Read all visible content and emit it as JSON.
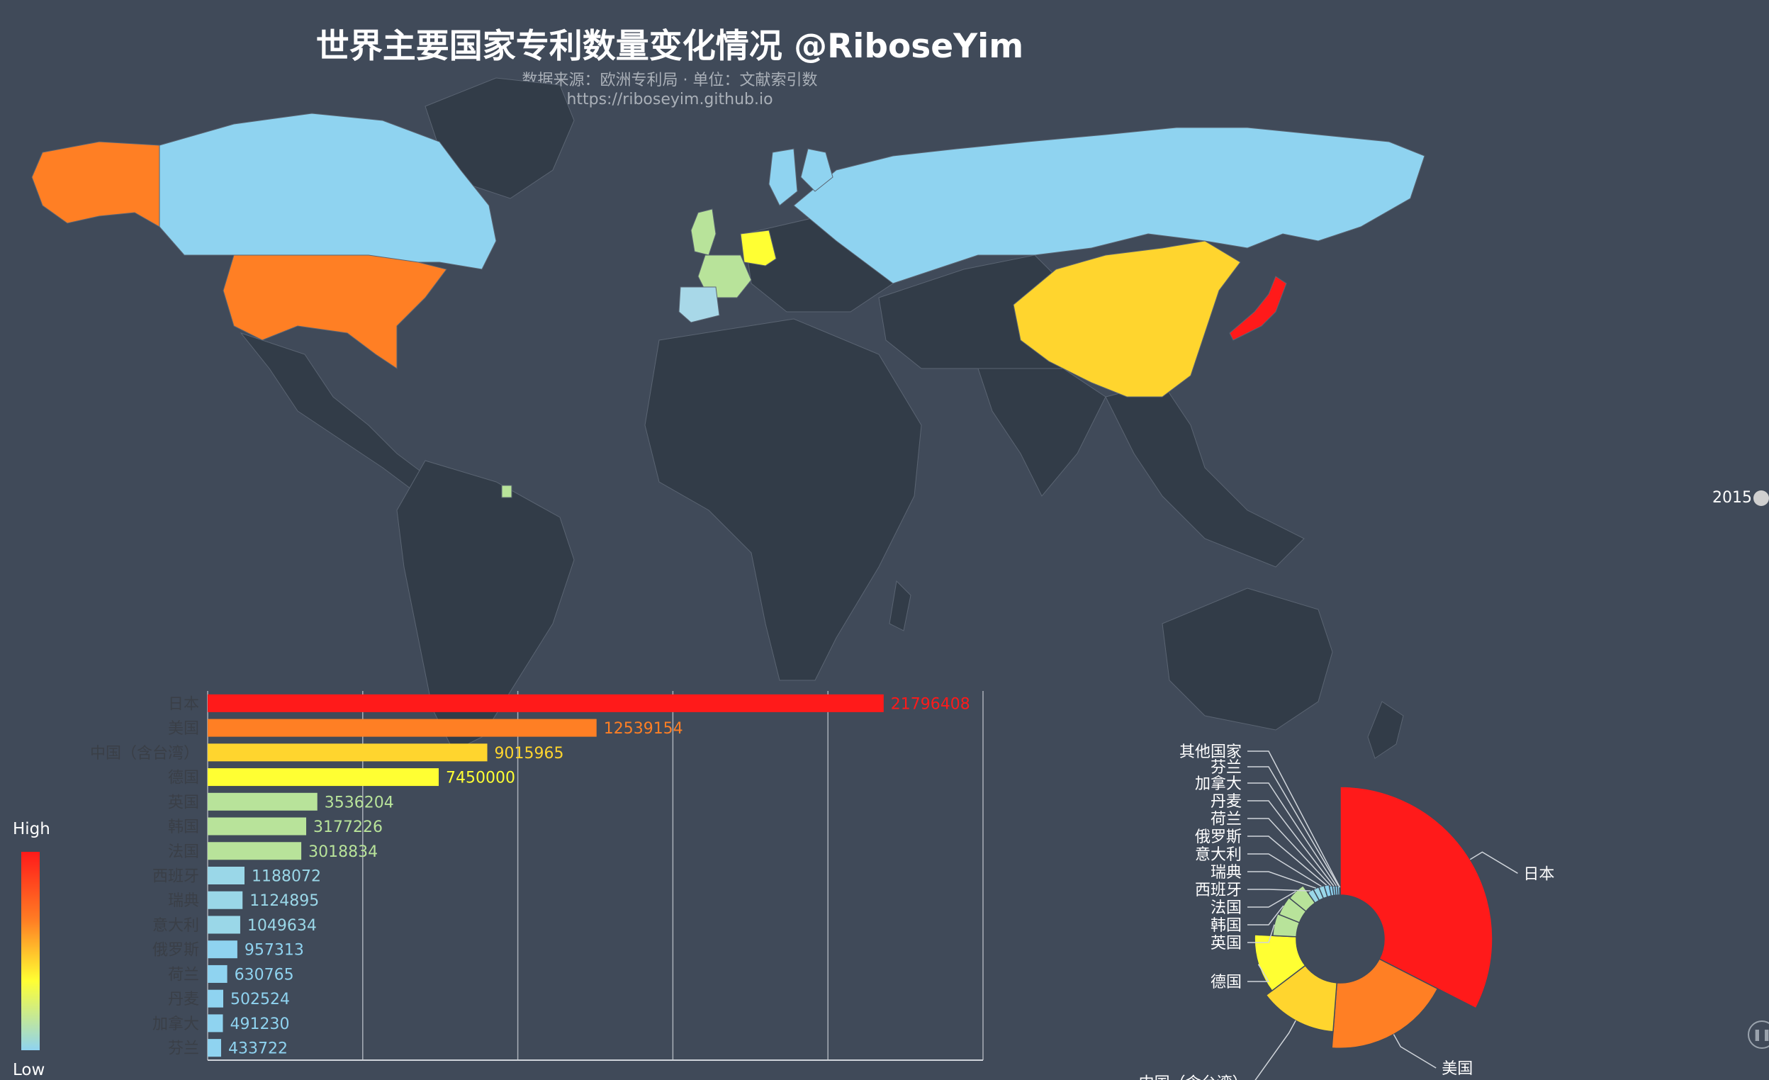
{
  "header": {
    "title": "世界主要国家专利数量变化情况 @RiboseYim",
    "subtitle_line1": "数据来源：欧洲专利局 · 单位：文献索引数",
    "subtitle_line2": "https://riboseyim.github.io"
  },
  "timeline": {
    "current_year": "2015"
  },
  "visual_map": {
    "high_label": "High",
    "low_label": "Low",
    "colors": [
      "#ff1a1a",
      "#ff7f24",
      "#ffff33",
      "#8fd3f0"
    ]
  },
  "chart_data": [
    {
      "type": "map",
      "regions": [
        {
          "name": "Japan",
          "value": 21796408,
          "color": "#ff1a1a"
        },
        {
          "name": "United States",
          "value": 12539154,
          "color": "#ff7f24"
        },
        {
          "name": "China",
          "value": 9015965,
          "color": "#ffd52e"
        },
        {
          "name": "Germany",
          "value": 7450000,
          "color": "#ffff33"
        },
        {
          "name": "United Kingdom",
          "value": 3536204,
          "color": "#b8e39a"
        },
        {
          "name": "France",
          "value": 3018834,
          "color": "#b8e39a"
        },
        {
          "name": "Spain",
          "value": 1188072,
          "color": "#a8d8e8"
        },
        {
          "name": "Russia",
          "value": 957313,
          "color": "#8fd3f0"
        },
        {
          "name": "Canada",
          "value": 491230,
          "color": "#8fd3f0"
        },
        {
          "name": "Finland",
          "value": 433722,
          "color": "#8fd3f0"
        }
      ]
    },
    {
      "type": "bar",
      "orientation": "horizontal",
      "categories": [
        "日本",
        "美国",
        "中国（含台湾）",
        "德国",
        "英国",
        "韩国",
        "法国",
        "西班牙",
        "瑞典",
        "意大利",
        "俄罗斯",
        "荷兰",
        "丹麦",
        "加拿大",
        "芬兰"
      ],
      "values": [
        21796408,
        12539154,
        9015965,
        7450000,
        3536204,
        3177226,
        3018834,
        1188072,
        1124895,
        1049634,
        957313,
        630765,
        502524,
        491230,
        433722
      ],
      "colors": [
        "#ff1a1a",
        "#ff7f24",
        "#ffd52e",
        "#ffff33",
        "#b8e39a",
        "#b8e39a",
        "#b8e39a",
        "#9ad7e8",
        "#9ad7e8",
        "#9ad7e8",
        "#8fd3f0",
        "#8fd3f0",
        "#8fd3f0",
        "#8fd3f0",
        "#8fd3f0"
      ],
      "xlim": [
        0,
        25000000
      ],
      "grid": true
    },
    {
      "type": "pie",
      "style": "rose-donut",
      "labels": [
        "日本",
        "美国",
        "中国（含台湾）",
        "德国",
        "英国",
        "韩国",
        "法国",
        "西班牙",
        "瑞典",
        "意大利",
        "俄罗斯",
        "荷兰",
        "丹麦",
        "加拿大",
        "芬兰",
        "其他国家"
      ],
      "values": [
        21796408,
        12539154,
        9015965,
        7450000,
        3536204,
        3177226,
        3018834,
        1188072,
        1124895,
        1049634,
        957313,
        630765,
        502524,
        491230,
        433722,
        120000
      ],
      "colors": [
        "#ff1a1a",
        "#ff7f24",
        "#ffd52e",
        "#ffff33",
        "#b8e39a",
        "#b8e39a",
        "#b8e39a",
        "#9ad7e8",
        "#9ad7e8",
        "#9ad7e8",
        "#8fd3f0",
        "#8fd3f0",
        "#8fd3f0",
        "#8fd3f0",
        "#8fd3f0",
        "#b8e39a"
      ]
    }
  ]
}
